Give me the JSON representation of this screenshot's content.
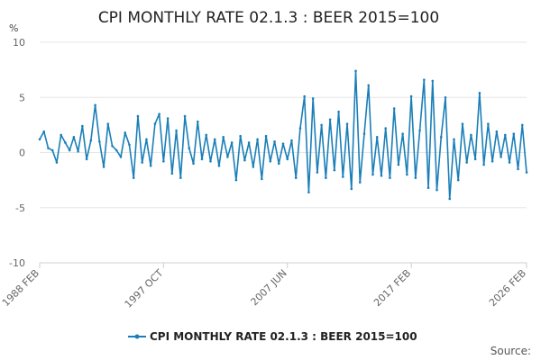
{
  "chart_data": {
    "type": "line",
    "title": "CPI MONTHLY RATE 02.1.3 : BEER 2015=100",
    "unit_label": "%",
    "ylim": [
      -10,
      10
    ],
    "y_ticks": [
      10,
      5,
      0,
      -5,
      -10
    ],
    "x_range": [
      "1988-02",
      "2026-02"
    ],
    "x_tick_labels": [
      {
        "label": "1988 FEB",
        "date": "1988-02"
      },
      {
        "label": "1997 OCT",
        "date": "1997-10"
      },
      {
        "label": "2007 JUN",
        "date": "2007-06"
      },
      {
        "label": "2017 FEB",
        "date": "2017-02"
      },
      {
        "label": "2026 FEB",
        "date": "2026-02"
      }
    ],
    "grid": true,
    "legend_position": "bottom",
    "series": [
      {
        "name": "CPI MONTHLY RATE 02.1.3 : BEER 2015=100",
        "color": "#1a7fb8",
        "points": [
          [
            "1988-02",
            1.2
          ],
          [
            "1988-06",
            1.9
          ],
          [
            "1988-10",
            0.4
          ],
          [
            "1989-02",
            0.2
          ],
          [
            "1989-06",
            -0.9
          ],
          [
            "1989-10",
            1.6
          ],
          [
            "1990-02",
            0.9
          ],
          [
            "1990-06",
            0.2
          ],
          [
            "1990-10",
            1.4
          ],
          [
            "1991-02",
            0.1
          ],
          [
            "1991-06",
            2.4
          ],
          [
            "1991-10",
            -0.6
          ],
          [
            "1992-02",
            1.1
          ],
          [
            "1992-06",
            4.3
          ],
          [
            "1992-10",
            1.0
          ],
          [
            "1993-02",
            -1.3
          ],
          [
            "1993-06",
            2.6
          ],
          [
            "1993-10",
            0.6
          ],
          [
            "1994-02",
            0.2
          ],
          [
            "1994-06",
            -0.4
          ],
          [
            "1994-10",
            1.8
          ],
          [
            "1995-02",
            0.7
          ],
          [
            "1995-06",
            -2.3
          ],
          [
            "1995-10",
            3.3
          ],
          [
            "1996-02",
            -0.9
          ],
          [
            "1996-06",
            1.2
          ],
          [
            "1996-10",
            -1.2
          ],
          [
            "1997-02",
            2.6
          ],
          [
            "1997-06",
            3.5
          ],
          [
            "1997-10",
            -0.8
          ],
          [
            "1998-02",
            3.1
          ],
          [
            "1998-06",
            -1.9
          ],
          [
            "1998-10",
            2.0
          ],
          [
            "1999-02",
            -2.3
          ],
          [
            "1999-06",
            3.3
          ],
          [
            "1999-10",
            0.4
          ],
          [
            "2000-02",
            -1.0
          ],
          [
            "2000-06",
            2.8
          ],
          [
            "2000-10",
            -0.6
          ],
          [
            "2001-02",
            1.6
          ],
          [
            "2001-06",
            -0.8
          ],
          [
            "2001-10",
            1.2
          ],
          [
            "2002-02",
            -1.2
          ],
          [
            "2002-06",
            1.4
          ],
          [
            "2002-10",
            -0.4
          ],
          [
            "2003-02",
            0.9
          ],
          [
            "2003-06",
            -2.5
          ],
          [
            "2003-10",
            1.5
          ],
          [
            "2004-02",
            -0.7
          ],
          [
            "2004-06",
            0.9
          ],
          [
            "2004-10",
            -1.3
          ],
          [
            "2005-02",
            1.2
          ],
          [
            "2005-06",
            -2.4
          ],
          [
            "2005-10",
            1.5
          ],
          [
            "2006-02",
            -0.8
          ],
          [
            "2006-06",
            1.0
          ],
          [
            "2006-10",
            -1.0
          ],
          [
            "2007-02",
            0.8
          ],
          [
            "2007-06",
            -0.6
          ],
          [
            "2007-10",
            1.1
          ],
          [
            "2008-02",
            -2.3
          ],
          [
            "2008-06",
            2.2
          ],
          [
            "2008-10",
            5.1
          ],
          [
            "2009-02",
            -3.6
          ],
          [
            "2009-06",
            4.9
          ],
          [
            "2009-10",
            -1.8
          ],
          [
            "2010-02",
            2.5
          ],
          [
            "2010-06",
            -2.3
          ],
          [
            "2010-10",
            3.0
          ],
          [
            "2011-02",
            -1.6
          ],
          [
            "2011-06",
            3.7
          ],
          [
            "2011-10",
            -2.2
          ],
          [
            "2012-02",
            2.6
          ],
          [
            "2012-06",
            -3.3
          ],
          [
            "2012-10",
            7.4
          ],
          [
            "2013-02",
            -2.7
          ],
          [
            "2013-06",
            1.7
          ],
          [
            "2013-10",
            6.1
          ],
          [
            "2014-02",
            -2.0
          ],
          [
            "2014-06",
            1.4
          ],
          [
            "2014-10",
            -2.1
          ],
          [
            "2015-02",
            2.2
          ],
          [
            "2015-06",
            -2.3
          ],
          [
            "2015-10",
            4.0
          ],
          [
            "2016-02",
            -1.1
          ],
          [
            "2016-06",
            1.7
          ],
          [
            "2016-10",
            -2.0
          ],
          [
            "2017-02",
            5.1
          ],
          [
            "2017-06",
            -2.3
          ],
          [
            "2017-10",
            2.0
          ],
          [
            "2018-02",
            6.6
          ],
          [
            "2018-06",
            -3.2
          ],
          [
            "2018-10",
            6.5
          ],
          [
            "2019-02",
            -3.4
          ],
          [
            "2019-06",
            1.4
          ],
          [
            "2019-10",
            5.0
          ],
          [
            "2020-02",
            -4.2
          ],
          [
            "2020-06",
            1.2
          ],
          [
            "2020-10",
            -2.5
          ],
          [
            "2021-02",
            2.6
          ],
          [
            "2021-06",
            -0.9
          ],
          [
            "2021-10",
            1.6
          ],
          [
            "2022-02",
            -0.6
          ],
          [
            "2022-06",
            5.4
          ],
          [
            "2022-10",
            -1.1
          ],
          [
            "2023-02",
            2.6
          ],
          [
            "2023-06",
            -0.8
          ],
          [
            "2023-10",
            1.9
          ],
          [
            "2024-02",
            -0.4
          ],
          [
            "2024-06",
            1.6
          ],
          [
            "2024-10",
            -0.9
          ],
          [
            "2025-02",
            1.7
          ],
          [
            "2025-06",
            -1.5
          ],
          [
            "2025-10",
            2.5
          ],
          [
            "2026-02",
            -1.8
          ]
        ]
      }
    ]
  },
  "source_label": "Source:"
}
